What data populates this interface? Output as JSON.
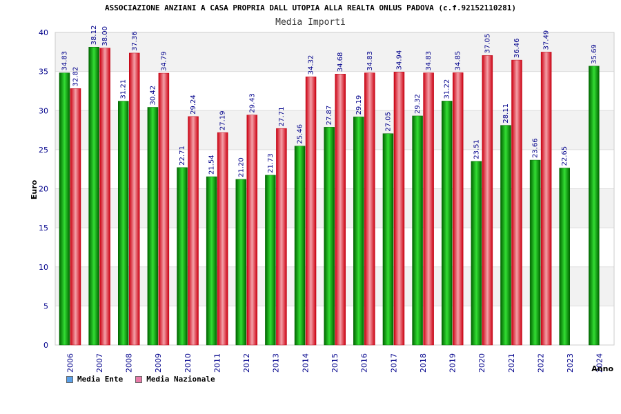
{
  "chart_data": {
    "type": "bar",
    "title": "ASSOCIAZIONE ANZIANI A CASA PROPRIA DALL UTOPIA ALLA REALTA ONLUS PADOVA (c.f.92152110281)",
    "subtitle": "Media Importi",
    "ylabel": "Euro",
    "xlabel": "Anno",
    "ylim": [
      0,
      40
    ],
    "yticks": [
      "0",
      "5",
      "10",
      "15",
      "20",
      "25",
      "30",
      "35",
      "40"
    ],
    "categories": [
      "2006",
      "2007",
      "2008",
      "2009",
      "2010",
      "2011",
      "2012",
      "2013",
      "2014",
      "2015",
      "2016",
      "2017",
      "2018",
      "2019",
      "2020",
      "2021",
      "2022",
      "2023",
      "2024"
    ],
    "series": [
      {
        "name": "Media Ente",
        "color": "#00b000",
        "values": [
          34.83,
          38.12,
          31.21,
          30.42,
          22.71,
          21.54,
          21.2,
          21.73,
          25.46,
          27.87,
          29.19,
          27.05,
          29.32,
          31.22,
          23.51,
          28.11,
          23.66,
          22.65,
          35.69
        ],
        "labels": [
          "34.83",
          "38.12",
          "31.21",
          "30.42",
          "22.71",
          "21.54",
          "21.20",
          "21.73",
          "25.46",
          "27.87",
          "29.19",
          "27.05",
          "29.32",
          "31.22",
          "23.51",
          "28.11",
          "23.66",
          "22.65",
          "35.69"
        ]
      },
      {
        "name": "Media Nazionale",
        "color": "#e8202a",
        "values": [
          32.82,
          38.0,
          37.36,
          34.79,
          29.24,
          27.19,
          29.43,
          27.71,
          34.32,
          34.68,
          34.83,
          34.94,
          34.83,
          34.85,
          37.05,
          36.46,
          37.49,
          null,
          null
        ],
        "labels": [
          "32.82",
          "38.00",
          "37.36",
          "34.79",
          "29.24",
          "27.19",
          "29.43",
          "27.71",
          "34.32",
          "34.68",
          "34.83",
          "34.94",
          "34.83",
          "34.85",
          "37.05",
          "36.46",
          "37.49",
          null,
          null
        ]
      }
    ],
    "legend": {
      "placement": "bottom-left",
      "items": [
        {
          "label": "Media Ente",
          "color": "#5aa0e8"
        },
        {
          "label": "Media Nazionale",
          "color": "#e87aa8"
        }
      ]
    },
    "grid": true,
    "band_colors": [
      "#f2f2f2",
      "#ffffff"
    ]
  }
}
